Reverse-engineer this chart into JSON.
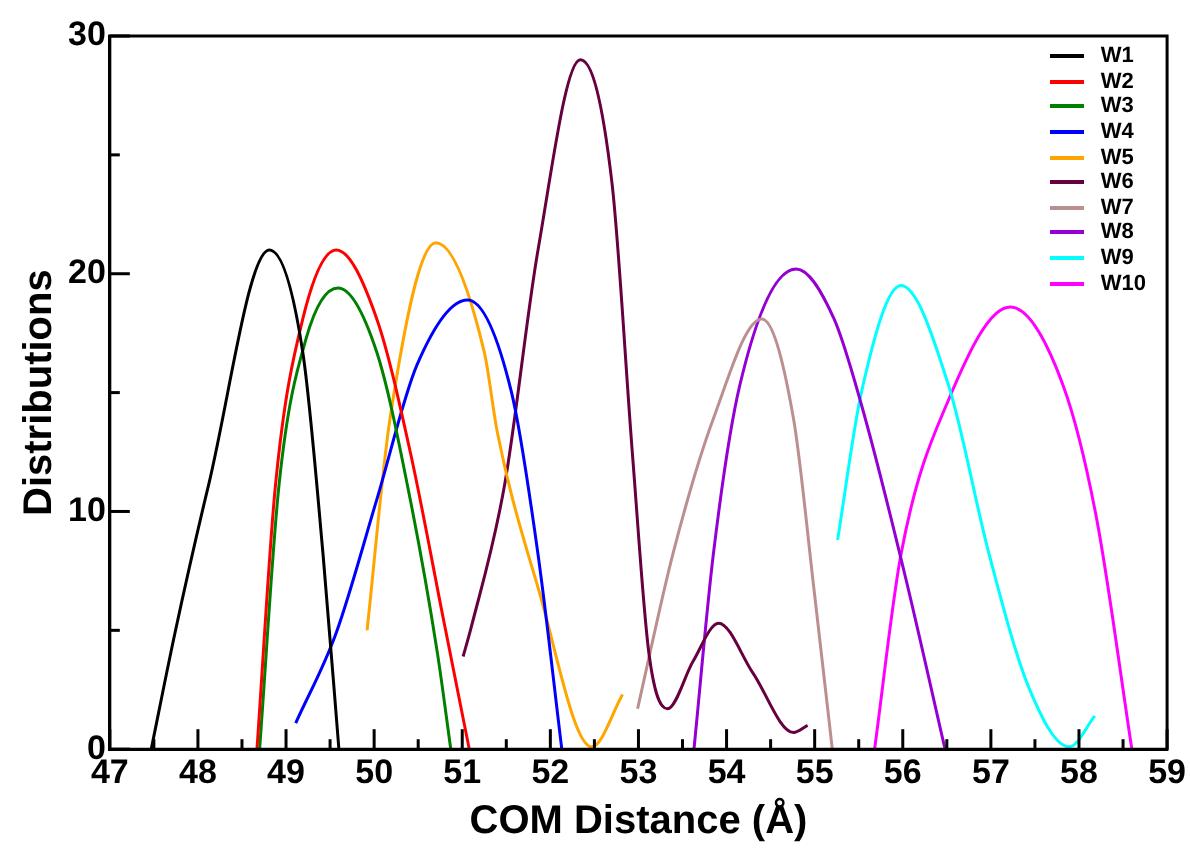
{
  "chart_data": {
    "type": "line",
    "xlabel": "COM Distance (Å)",
    "ylabel": "Distributions",
    "xlim": [
      47,
      59
    ],
    "xticks": [
      47,
      {
        "value": 47.5,
        "label": null
      },
      48,
      {
        "value": 48.5,
        "label": null
      },
      49,
      {
        "value": 49.5,
        "label": null
      },
      50,
      {
        "value": 50.5,
        "label": null
      },
      51,
      {
        "value": 51.5,
        "label": null
      },
      52,
      {
        "value": 52.5,
        "label": null
      },
      53,
      {
        "value": 53.5,
        "label": null
      },
      54,
      {
        "value": 54.5,
        "label": null
      },
      55,
      {
        "value": 55.5,
        "label": null
      },
      56,
      {
        "value": 56.5,
        "label": null
      },
      57,
      {
        "value": 57.5,
        "label": null
      },
      58,
      {
        "value": 58.5,
        "label": null
      },
      59
    ],
    "ylim": [
      0,
      30
    ],
    "yticks": [
      0,
      {
        "value": 5,
        "label": null
      },
      10,
      {
        "value": 15,
        "label": null
      },
      20,
      {
        "value": 25,
        "label": null
      },
      30
    ],
    "legend": "top right",
    "marker": "none",
    "line_style": "solid",
    "series": [
      {
        "name": "W1",
        "color": "#000000",
        "x": [
          47.47,
          47.74,
          48.12,
          48.81,
          49.19,
          49.42,
          49.6
        ],
        "values": [
          0,
          4.9,
          11.1,
          21.0,
          16.7,
          8.2,
          0
        ]
      },
      {
        "name": "W2",
        "color": "#ff0000",
        "x": [
          48.67,
          48.88,
          49.19,
          49.57,
          50.03,
          50.41,
          50.79,
          51.08
        ],
        "values": [
          0,
          11.1,
          18.1,
          21.0,
          18.1,
          12.5,
          5.4,
          0
        ]
      },
      {
        "name": "W3",
        "color": "#008000",
        "x": [
          48.7,
          48.92,
          49.23,
          49.59,
          50.03,
          50.41,
          50.72,
          50.87
        ],
        "values": [
          0,
          11.1,
          17.3,
          19.4,
          16.7,
          10.5,
          4.0,
          0
        ]
      },
      {
        "name": "W4",
        "color": "#0000ff",
        "x": [
          49.11,
          49.57,
          50.03,
          50.49,
          51.06,
          51.56,
          51.86,
          52.13
        ],
        "values": [
          1.1,
          4.9,
          10.5,
          16.2,
          18.9,
          15.0,
          8.2,
          0
        ]
      },
      {
        "name": "W5",
        "color": "#ffa500",
        "x": [
          49.92,
          50.18,
          50.7,
          51.25,
          51.4,
          51.86,
          52.47,
          52.82
        ],
        "values": [
          5.0,
          13.9,
          21.3,
          16.7,
          13.3,
          6.8,
          0.1,
          2.3
        ]
      },
      {
        "name": "W6",
        "color": "#67003f",
        "x": [
          51.01,
          51.1,
          51.48,
          51.86,
          52.34,
          52.7,
          52.93,
          53.12,
          53.33,
          53.62,
          53.91,
          54.3,
          54.76,
          54.92
        ],
        "values": [
          3.9,
          5.1,
          11.1,
          21.0,
          29.0,
          23.8,
          12.5,
          4.0,
          1.7,
          3.7,
          5.3,
          3.2,
          0.7,
          1.0
        ]
      },
      {
        "name": "W7",
        "color": "#bc8f8f",
        "x": [
          52.99,
          53.39,
          53.85,
          54.4,
          54.76,
          54.99,
          55.2
        ],
        "values": [
          1.7,
          8.2,
          13.9,
          18.1,
          13.9,
          6.8,
          0
        ]
      },
      {
        "name": "W8",
        "color": "#9400d3",
        "x": [
          53.63,
          53.85,
          54.15,
          54.79,
          55.22,
          55.53,
          56.02,
          56.48
        ],
        "values": [
          0,
          8.2,
          15.3,
          20.2,
          18.1,
          14.5,
          7.4,
          0
        ]
      },
      {
        "name": "W9",
        "color": "#00ffff",
        "x": [
          55.26,
          55.53,
          55.98,
          56.52,
          56.98,
          57.43,
          57.89,
          58.18
        ],
        "values": [
          8.8,
          15.0,
          19.5,
          15.3,
          8.2,
          2.6,
          0.1,
          1.4
        ]
      },
      {
        "name": "W10",
        "color": "#ff00ff",
        "x": [
          55.68,
          55.98,
          56.52,
          57.22,
          57.82,
          58.2,
          58.6
        ],
        "values": [
          0,
          8.2,
          14.7,
          18.6,
          15.3,
          9.7,
          0
        ]
      }
    ]
  }
}
